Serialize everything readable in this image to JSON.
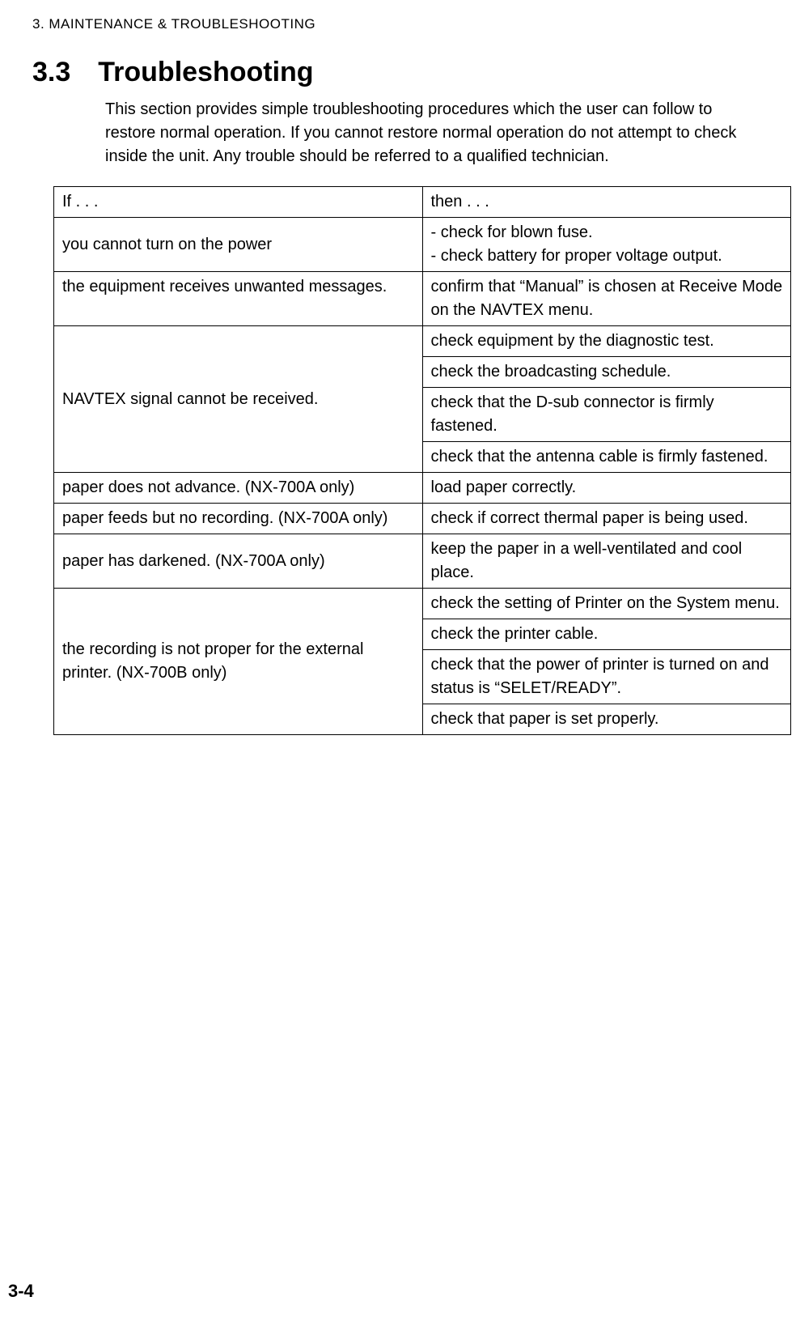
{
  "header": {
    "running_head": "3. MAINTENANCE & TROUBLESHOOTING"
  },
  "section": {
    "number": "3.3",
    "title": "Troubleshooting",
    "intro": "This section provides simple troubleshooting procedures which the user can follow to restore normal operation. If you cannot restore normal operation do not attempt to check inside the unit. Any trouble should be referred to a qualified technician."
  },
  "table": {
    "columns": {
      "if": "If . . .",
      "then": "then . . ."
    },
    "rows": [
      {
        "if": "you cannot turn on the power",
        "then_lines": [
          "- check for blown fuse.",
          "- check battery for proper voltage output."
        ]
      },
      {
        "if": "the equipment receives unwanted messages.",
        "then": "confirm that “Manual” is chosen at Receive Mode on the NAVTEX menu."
      },
      {
        "if": "NAVTEX signal cannot be received.",
        "then_group": [
          "check equipment by the diagnostic test.",
          "check the broadcasting schedule.",
          "check that the D-sub connector is firmly fastened.",
          "check that the antenna cable is firmly fastened."
        ]
      },
      {
        "if": "paper does not advance. (NX-700A only)",
        "then": "load paper correctly."
      },
      {
        "if": "paper feeds but no recording. (NX-700A only)",
        "then": "check if correct thermal paper is being used."
      },
      {
        "if": "paper has darkened. (NX-700A only)",
        "then": "keep the paper in a well-ventilated and cool place."
      },
      {
        "if": "the recording is not proper for the external printer. (NX-700B only)",
        "then_group": [
          "check the setting of Printer on the System menu.",
          "check the printer cable.",
          "check that the power of printer is turned on and status is “SELET/READY”.",
          "check that paper is set properly."
        ]
      }
    ]
  },
  "footer": {
    "page_number": "3-4"
  }
}
